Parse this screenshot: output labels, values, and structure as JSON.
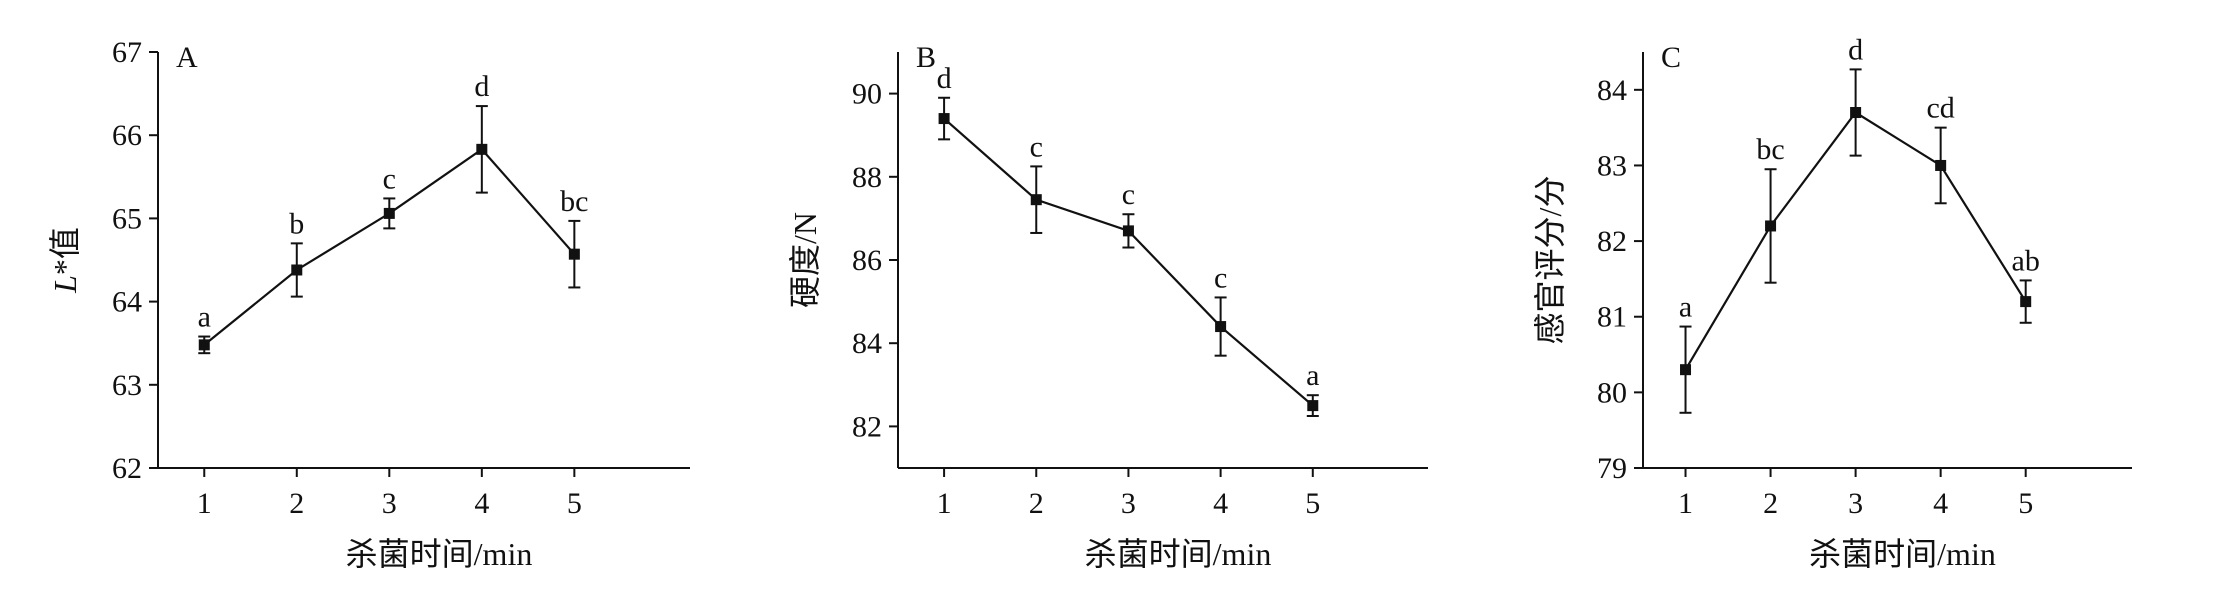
{
  "chart_data": [
    {
      "type": "line",
      "panel_label": "A",
      "xlabel": "杀菌时间/min",
      "ylabel_italic": "L",
      "ylabel_rest": "*值",
      "x": [
        1,
        2,
        3,
        4,
        5
      ],
      "x_ticks": [
        "1",
        "2",
        "3",
        "4",
        "5"
      ],
      "ylim": [
        62,
        67
      ],
      "y_ticks": [
        "62",
        "63",
        "64",
        "65",
        "66",
        "67"
      ],
      "values": [
        63.48,
        64.38,
        65.06,
        65.83,
        64.57
      ],
      "errors": [
        0.1,
        0.32,
        0.18,
        0.52,
        0.4
      ],
      "labels": [
        "a",
        "b",
        "c",
        "d",
        "bc"
      ],
      "grid": false,
      "marker": "square"
    },
    {
      "type": "line",
      "panel_label": "B",
      "xlabel": "杀菌时间/min",
      "ylabel": "硬度/N",
      "x": [
        1,
        2,
        3,
        4,
        5
      ],
      "x_ticks": [
        "1",
        "2",
        "3",
        "4",
        "5"
      ],
      "ylim": [
        81,
        91
      ],
      "y_ticks": [
        "82",
        "84",
        "86",
        "88",
        "90"
      ],
      "values": [
        89.4,
        87.45,
        86.7,
        84.4,
        82.5
      ],
      "errors": [
        0.5,
        0.8,
        0.4,
        0.7,
        0.25
      ],
      "labels": [
        "d",
        "c",
        "c",
        "c",
        "a"
      ],
      "grid": false,
      "marker": "square"
    },
    {
      "type": "line",
      "panel_label": "C",
      "xlabel": "杀菌时间/min",
      "ylabel": "感官评分/分",
      "x": [
        1,
        2,
        3,
        4,
        5
      ],
      "x_ticks": [
        "1",
        "2",
        "3",
        "4",
        "5"
      ],
      "ylim": [
        79,
        84.5
      ],
      "y_ticks": [
        "79",
        "80",
        "81",
        "82",
        "83",
        "84"
      ],
      "values": [
        80.3,
        82.2,
        83.7,
        83.0,
        81.2
      ],
      "errors": [
        0.57,
        0.75,
        0.57,
        0.5,
        0.28
      ],
      "labels": [
        "a",
        "bc",
        "d",
        "cd",
        "ab"
      ],
      "grid": false,
      "marker": "square"
    }
  ]
}
